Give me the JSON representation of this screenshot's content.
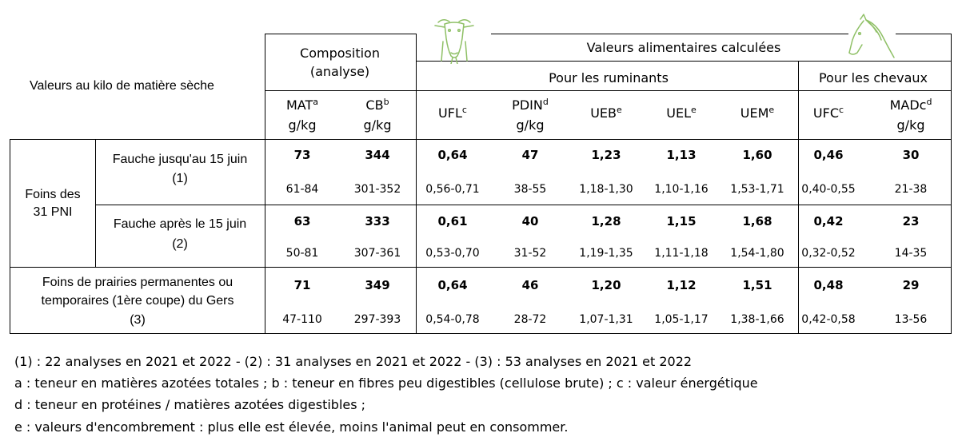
{
  "table": {
    "row_header_title": "Valeurs au kilo de matière sèche",
    "composition_header": [
      "Composition",
      "(analyse)"
    ],
    "calc_header": "Valeurs alimentaires calculées",
    "ruminants_header": "Pour les ruminants",
    "horses_header": "Pour les chevaux",
    "columns": [
      {
        "name": "MAT",
        "sup": "a",
        "unit": "g/kg"
      },
      {
        "name": "CB",
        "sup": "b",
        "unit": "g/kg"
      },
      {
        "name": "UFL",
        "sup": "c",
        "unit": ""
      },
      {
        "name": "PDIN",
        "sup": "d",
        "unit": "g/kg"
      },
      {
        "name": "UEB",
        "sup": "e",
        "unit": ""
      },
      {
        "name": "UEL",
        "sup": "e",
        "unit": ""
      },
      {
        "name": "UEM",
        "sup": "e",
        "unit": ""
      },
      {
        "name": "UFC",
        "sup": "c",
        "unit": ""
      },
      {
        "name": "MADc",
        "sup": "d",
        "unit": "g/kg"
      }
    ],
    "group_label": [
      "Foins des",
      "31 PNI"
    ],
    "rows": [
      {
        "label": [
          "Fauche jusqu'au 15 juin",
          "(1)"
        ],
        "means": [
          "73",
          "344",
          "0,64",
          "47",
          "1,23",
          "1,13",
          "1,60",
          "0,46",
          "30"
        ],
        "ranges": [
          "61-84",
          "301-352",
          "0,56-0,71",
          "38-55",
          "1,18-1,30",
          "1,10-1,16",
          "1,53-1,71",
          "0,40-0,55",
          "21-38"
        ]
      },
      {
        "label": [
          "Fauche après le 15 juin",
          "(2)"
        ],
        "means": [
          "63",
          "333",
          "0,61",
          "40",
          "1,28",
          "1,15",
          "1,68",
          "0,42",
          "23"
        ],
        "ranges": [
          "50-81",
          "307-361",
          "0,53-0,70",
          "31-52",
          "1,19-1,35",
          "1,11-1,18",
          "1,54-1,80",
          "0,32-0,52",
          "14-35"
        ]
      },
      {
        "label": [
          "Foins de prairies permanentes ou",
          "temporaires (1ère coupe) du Gers",
          "(3)"
        ],
        "means": [
          "71",
          "349",
          "0,64",
          "46",
          "1,20",
          "1,12",
          "1,51",
          "0,48",
          "29"
        ],
        "ranges": [
          "47-110",
          "297-393",
          "0,54-0,78",
          "28-72",
          "1,07-1,31",
          "1,05-1,17",
          "1,38-1,66",
          "0,42-0,58",
          "13-56"
        ]
      }
    ]
  },
  "icons": {
    "cow": "cow-icon",
    "horse": "horse-icon",
    "accent": "#8fc066"
  },
  "notes": [
    "(1) : 22 analyses en 2021 et 2022 - (2) : 31 analyses en 2021 et 2022 - (3) : 53 analyses en 2021 et 2022",
    "a : teneur en matières azotées totales ; b : teneur en fibres peu digestibles (cellulose brute) ; c : valeur énergétique",
    "d : teneur en protéines / matières azotées digestibles ;",
    "e : valeurs d'encombrement : plus elle est élevée, moins l'animal peut en consommer."
  ]
}
